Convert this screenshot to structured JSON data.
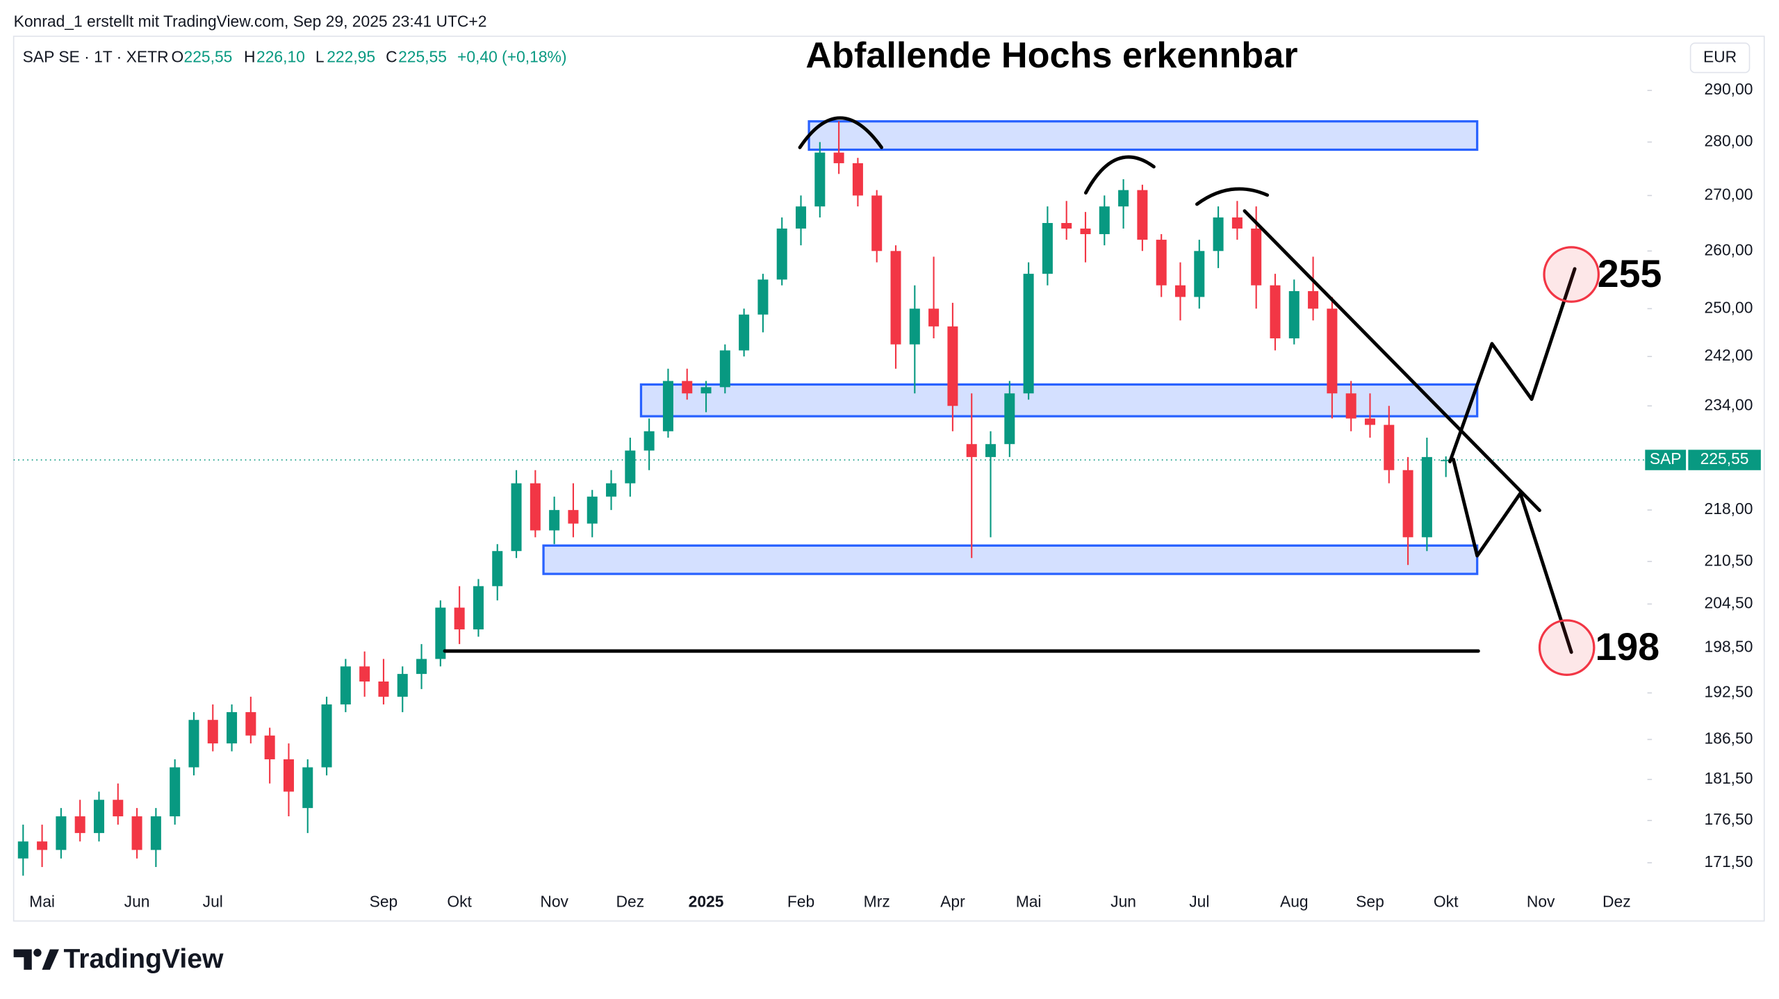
{
  "header": {
    "credit": "Konrad_1 erstellt mit TradingView.com, Sep 29, 2025 23:41 UTC+2",
    "symbol": "SAP SE · 1T · XETR",
    "quote": [
      [
        "O",
        "225,55"
      ],
      [
        "H",
        "226,10"
      ],
      [
        "L",
        "222,95"
      ],
      [
        "C",
        "225,55"
      ]
    ],
    "change": "+0,40 (+0,18%)",
    "currency": "EUR"
  },
  "footer": {
    "brand": "TradingView"
  },
  "chart_data": {
    "type": "candlestick",
    "title": "Abfallende Hochs erkennbar",
    "log_scale": true,
    "grid": false,
    "up_color": "#089981",
    "down_color": "#f23645",
    "categories": [
      null,
      "Mai",
      null,
      null,
      null,
      null,
      "Jun",
      null,
      null,
      null,
      "Jul",
      null,
      null,
      null,
      null,
      null,
      null,
      null,
      null,
      "Sep",
      null,
      null,
      null,
      "Okt",
      null,
      null,
      null,
      null,
      "Nov",
      null,
      null,
      null,
      "Dez",
      null,
      null,
      null,
      "2025",
      null,
      null,
      null,
      null,
      "Feb",
      null,
      null,
      null,
      "Mrz",
      null,
      null,
      null,
      "Apr",
      null,
      null,
      null,
      "Mai",
      null,
      null,
      null,
      null,
      "Jun",
      null,
      null,
      null,
      "Jul",
      null,
      null,
      null,
      null,
      "Aug",
      null,
      null,
      null,
      "Sep",
      null,
      null,
      null,
      "Okt",
      null,
      null,
      null,
      null,
      "Nov",
      null,
      null,
      null,
      "Dez",
      null
    ],
    "open": [
      172,
      174,
      173,
      177,
      175,
      179,
      177,
      173,
      177,
      183,
      189,
      186,
      190,
      187,
      184,
      178,
      183,
      191,
      196,
      194,
      192,
      195,
      197,
      204,
      201,
      207,
      212,
      222,
      215,
      218,
      216,
      220,
      222,
      227,
      230,
      238,
      236,
      237,
      243,
      249,
      255,
      264,
      268,
      278,
      276,
      270,
      260,
      244,
      250,
      247,
      228,
      226,
      228,
      236,
      256,
      265,
      264,
      263,
      268,
      271,
      262,
      254,
      252,
      260,
      266,
      264,
      254,
      245,
      253,
      250,
      236,
      232,
      231,
      224,
      214,
      225.55,
      null,
      null,
      null,
      null,
      null,
      null,
      null,
      null,
      null,
      null
    ],
    "high": [
      176,
      176,
      178,
      179,
      180,
      181,
      178,
      178,
      184,
      190,
      191,
      191,
      192,
      188,
      186,
      184,
      192,
      197,
      198,
      197,
      196,
      199,
      205,
      207,
      208,
      213,
      224,
      224,
      220,
      222,
      221,
      224,
      229,
      232,
      240,
      240,
      238,
      244,
      250,
      256,
      266,
      270,
      280,
      284,
      277,
      271,
      261,
      254,
      259,
      251,
      236,
      230,
      238,
      258,
      268,
      269,
      267,
      270,
      273,
      272,
      263,
      258,
      262,
      268,
      269,
      268,
      256,
      255,
      259,
      252,
      238,
      236,
      234,
      226,
      229,
      226.1,
      null,
      null,
      null,
      null,
      null,
      null,
      null,
      null,
      null,
      null
    ],
    "low": [
      170,
      171,
      172,
      174,
      174,
      176,
      172,
      171,
      176,
      182,
      185,
      185,
      186,
      181,
      177,
      175,
      182,
      190,
      192,
      191,
      190,
      193,
      196,
      199,
      200,
      205,
      211,
      214,
      213,
      214,
      214,
      218,
      220,
      224,
      229,
      235,
      233,
      236,
      242,
      246,
      254,
      261,
      266,
      274,
      268,
      258,
      240,
      236,
      245,
      230,
      211,
      214,
      226,
      235,
      254,
      262,
      258,
      261,
      264,
      260,
      252,
      248,
      250,
      257,
      262,
      250,
      243,
      244,
      248,
      232,
      230,
      229,
      222,
      210,
      212,
      222.95,
      null,
      null,
      null,
      null,
      null,
      null,
      null,
      null,
      null,
      null
    ],
    "close": [
      174,
      173,
      177,
      175,
      179,
      177,
      173,
      177,
      183,
      189,
      186,
      190,
      187,
      184,
      180,
      183,
      191,
      196,
      194,
      192,
      195,
      197,
      204,
      201,
      207,
      212,
      222,
      215,
      218,
      216,
      220,
      222,
      227,
      230,
      238,
      236,
      237,
      243,
      249,
      255,
      264,
      268,
      278,
      276,
      270,
      260,
      244,
      250,
      247,
      234,
      226,
      228,
      236,
      256,
      265,
      264,
      263,
      268,
      271,
      262,
      254,
      252,
      260,
      266,
      264,
      254,
      245,
      253,
      250,
      236,
      232,
      231,
      224,
      214,
      226,
      225.55,
      null,
      null,
      null,
      null,
      null,
      null,
      null,
      null,
      null,
      null
    ],
    "ylim": [
      168.7,
      294
    ],
    "yticks": [
      {
        "value": 290,
        "label": "290,00"
      },
      {
        "value": 280,
        "label": "280,00"
      },
      {
        "value": 270,
        "label": "270,00"
      },
      {
        "value": 260,
        "label": "260,00"
      },
      {
        "value": 250,
        "label": "250,00"
      },
      {
        "value": 242,
        "label": "242,00"
      },
      {
        "value": 234,
        "label": "234,00"
      },
      {
        "value": 218,
        "label": "218,00"
      },
      {
        "value": 210.5,
        "label": "210,50"
      },
      {
        "value": 204.5,
        "label": "204,50"
      },
      {
        "value": 198.5,
        "label": "198,50"
      },
      {
        "value": 192.5,
        "label": "192,50"
      },
      {
        "value": 186.5,
        "label": "186,50"
      },
      {
        "value": 181.5,
        "label": "181,50"
      },
      {
        "value": 176.5,
        "label": "176,50"
      },
      {
        "value": 171.5,
        "label": "171,50"
      }
    ],
    "last_price": {
      "symbol": "SAP",
      "value": 225.55,
      "label": "225,55"
    },
    "annotations": [
      "255",
      "198"
    ]
  }
}
